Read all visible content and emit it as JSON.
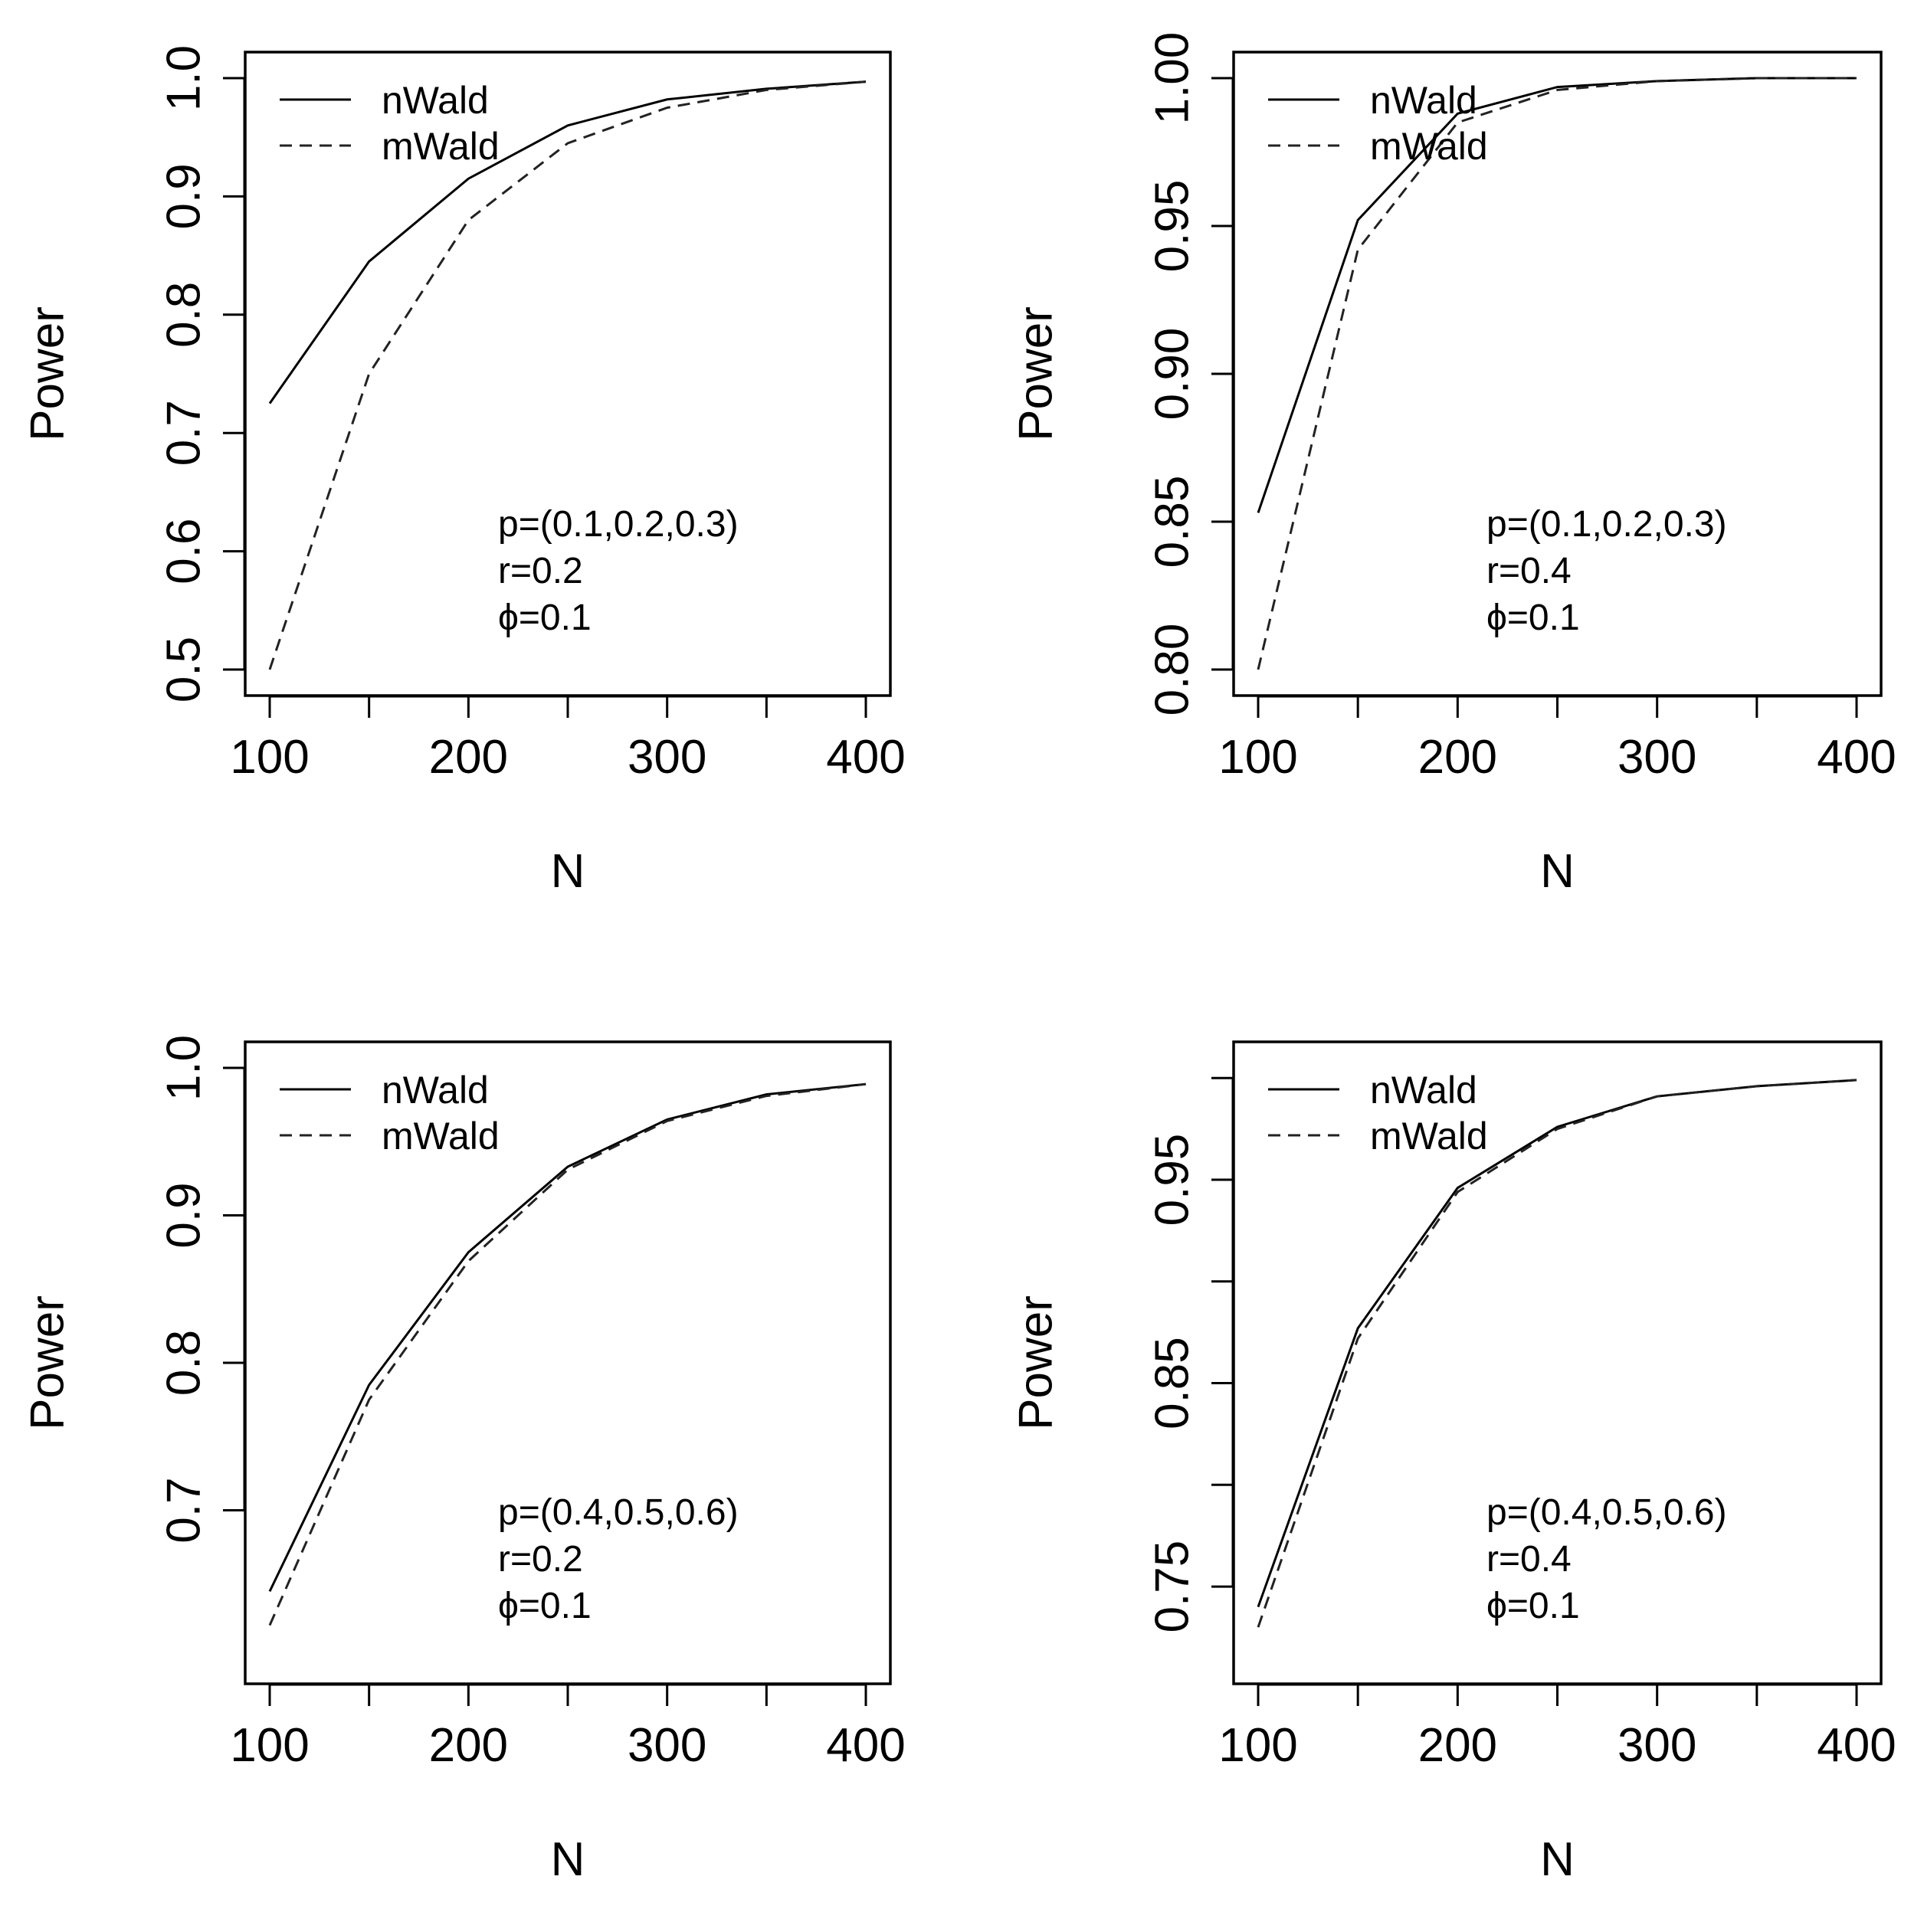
{
  "chart_data": [
    {
      "type": "line",
      "xlabel": "N",
      "ylabel": "Power",
      "xlim": [
        100,
        400
      ],
      "ylim": [
        0.5,
        1.0
      ],
      "x": [
        100,
        150,
        200,
        250,
        300,
        350,
        400
      ],
      "xticks": [
        "100",
        "200",
        "300",
        "400"
      ],
      "xtick_values": [
        100,
        200,
        300,
        400
      ],
      "yticks": [
        "0.5",
        "0.6",
        "0.7",
        "0.8",
        "0.9",
        "1.0"
      ],
      "ytick_values": [
        0.5,
        0.6,
        0.7,
        0.8,
        0.9,
        1.0
      ],
      "series": [
        {
          "name": "nWald",
          "style": "solid",
          "values": [
            0.725,
            0.845,
            0.915,
            0.96,
            0.982,
            0.991,
            0.997
          ]
        },
        {
          "name": "mWald",
          "style": "dashed",
          "values": [
            0.5,
            0.75,
            0.88,
            0.945,
            0.975,
            0.99,
            0.997
          ]
        }
      ],
      "legend": "top-left",
      "annotations": [
        "p=(0.1,0.2,0.3)",
        "r=0.2",
        "ϕ=0.1"
      ],
      "grid": false
    },
    {
      "type": "line",
      "xlabel": "N",
      "ylabel": "Power",
      "xlim": [
        100,
        400
      ],
      "ylim": [
        0.8,
        1.0
      ],
      "x": [
        100,
        150,
        200,
        250,
        300,
        350,
        400
      ],
      "xticks": [
        "100",
        "200",
        "300",
        "400"
      ],
      "xtick_values": [
        100,
        200,
        300,
        400
      ],
      "yticks": [
        "0.80",
        "0.85",
        "0.90",
        "0.95",
        "1.00"
      ],
      "ytick_values": [
        0.8,
        0.85,
        0.9,
        0.95,
        1.0
      ],
      "series": [
        {
          "name": "nWald",
          "style": "solid",
          "values": [
            0.853,
            0.952,
            0.988,
            0.997,
            0.999,
            1.0,
            1.0
          ]
        },
        {
          "name": "mWald",
          "style": "dashed",
          "values": [
            0.8,
            0.942,
            0.985,
            0.996,
            0.999,
            1.0,
            1.0
          ]
        }
      ],
      "legend": "top-left",
      "annotations": [
        "p=(0.1,0.2,0.3)",
        "r=0.4",
        "ϕ=0.1"
      ],
      "grid": false
    },
    {
      "type": "line",
      "xlabel": "N",
      "ylabel": "Power",
      "xlim": [
        100,
        400
      ],
      "ylim": [
        0.6,
        1.0
      ],
      "x": [
        100,
        150,
        200,
        250,
        300,
        350,
        400
      ],
      "xticks": [
        "100",
        "200",
        "300",
        "400"
      ],
      "xtick_values": [
        100,
        200,
        300,
        400
      ],
      "yticks": [
        "0.7",
        "0.8",
        "0.9",
        "1.0"
      ],
      "ytick_values": [
        0.7,
        0.8,
        0.9,
        1.0
      ],
      "series": [
        {
          "name": "nWald",
          "style": "solid",
          "values": [
            0.645,
            0.785,
            0.875,
            0.933,
            0.965,
            0.982,
            0.989
          ]
        },
        {
          "name": "mWald",
          "style": "dashed",
          "values": [
            0.622,
            0.775,
            0.869,
            0.931,
            0.964,
            0.981,
            0.989
          ]
        }
      ],
      "legend": "top-left",
      "annotations": [
        "p=(0.4,0.5,0.6)",
        "r=0.2",
        "ϕ=0.1"
      ],
      "grid": false
    },
    {
      "type": "line",
      "xlabel": "N",
      "ylabel": "Power",
      "xlim": [
        100,
        400
      ],
      "ylim": [
        0.715,
        1.005
      ],
      "x": [
        100,
        150,
        200,
        250,
        300,
        350,
        400
      ],
      "xticks": [
        "100",
        "200",
        "300",
        "400"
      ],
      "xtick_values": [
        100,
        200,
        300,
        400
      ],
      "yticks": [
        "0.75",
        "0.85",
        "0.95"
      ],
      "ytick_values": [
        0.75,
        0.85,
        0.95
      ],
      "minor_ytick_values": [
        0.8,
        0.9,
        1.0
      ],
      "series": [
        {
          "name": "nWald",
          "style": "solid",
          "values": [
            0.74,
            0.877,
            0.946,
            0.976,
            0.991,
            0.996,
            0.999
          ]
        },
        {
          "name": "mWald",
          "style": "dashed",
          "values": [
            0.73,
            0.872,
            0.944,
            0.975,
            0.991,
            0.996,
            0.999
          ]
        }
      ],
      "legend": "top-left",
      "annotations": [
        "p=(0.4,0.5,0.6)",
        "r=0.4",
        "ϕ=0.1"
      ],
      "grid": false
    }
  ]
}
